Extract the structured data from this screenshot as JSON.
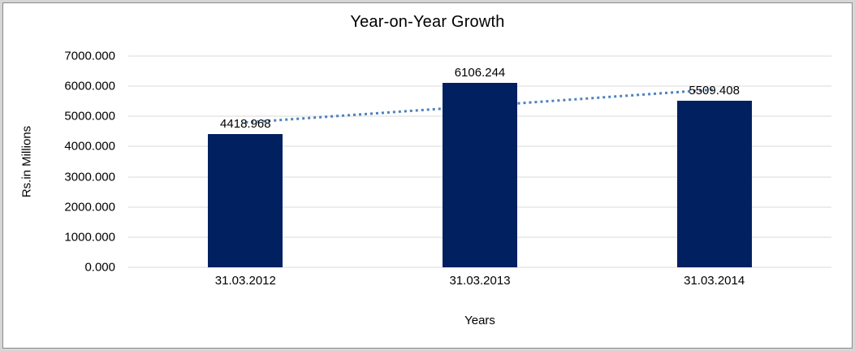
{
  "window": {
    "background_color": "#d6d6d6",
    "frame_border_color": "#8a8a8a",
    "frame_background": "#ffffff"
  },
  "chart_data": {
    "type": "bar",
    "title": "Year-on-Year Growth",
    "categories": [
      "31.03.2012",
      "31.03.2013",
      "31.03.2014"
    ],
    "values": [
      4418.968,
      6106.244,
      5509.408
    ],
    "value_labels": [
      "4418.968",
      "6106.244",
      "5509.408"
    ],
    "xlabel": "Years",
    "ylabel": "Rs.in Millions",
    "ylim": [
      0,
      7000
    ],
    "ytick_step": 1000,
    "ytick_labels": [
      "0.000",
      "1000.000",
      "2000.000",
      "3000.000",
      "4000.000",
      "5000.000",
      "6000.000",
      "7000.000"
    ],
    "grid": true,
    "legend": false,
    "trendline": {
      "type": "linear",
      "style": "dotted"
    },
    "colors": {
      "bar": "#002060",
      "gridline": "#d9d9d9",
      "trendline": "#4f81bd",
      "text": "#000000"
    }
  }
}
